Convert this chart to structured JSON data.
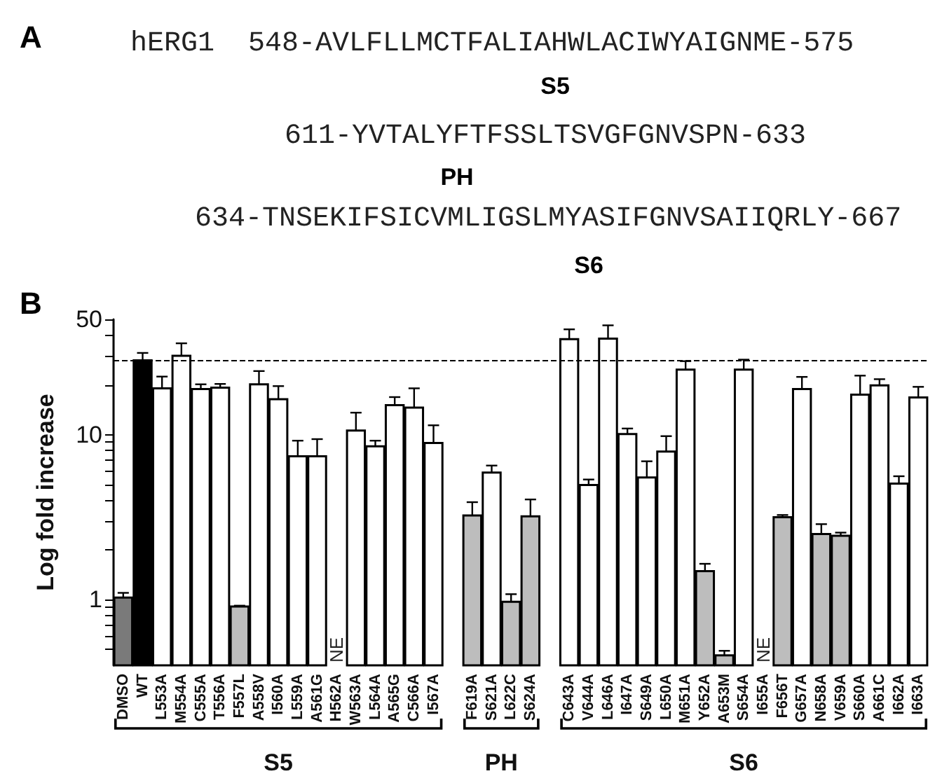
{
  "chart_data": {
    "type": "bar",
    "ylabel": "Log fold increase",
    "categories": [
      "DMSO",
      "WT",
      "L553A",
      "M554A",
      "C555A",
      "T556A",
      "F557L",
      "A558V",
      "I560A",
      "L559A",
      "A561G",
      "H562A",
      "W563A",
      "L564A",
      "A565G",
      "C566A",
      "I567A",
      null,
      "F619A",
      "S621A",
      "L622C",
      "S624A",
      null,
      "C643A",
      "V644A",
      "L646A",
      "I647A",
      "S649A",
      "L650A",
      "M651A",
      "Y652A",
      "A653M",
      "S654A",
      "I655A",
      "F656T",
      "G657A",
      "N658A",
      "V659A",
      "S660A",
      "A661C",
      "I662A",
      "I663A"
    ],
    "values": [
      1.03,
      28.2,
      19.1,
      30.1,
      18.9,
      19.3,
      0.91,
      20.2,
      16.4,
      7.4,
      7.4,
      null,
      10.6,
      8.5,
      15.1,
      14.6,
      8.9,
      null,
      3.24,
      5.9,
      0.97,
      3.2,
      null,
      37.9,
      4.95,
      38.2,
      10.1,
      5.5,
      7.9,
      24.8,
      1.49,
      0.46,
      24.8,
      null,
      3.16,
      18.9,
      2.5,
      2.44,
      17.5,
      19.9,
      5.05,
      16.8
    ],
    "colors": [
      "#7a7a7a",
      "#000000",
      "#ffffff",
      "#ffffff",
      "#ffffff",
      "#ffffff",
      "#bdbdbd",
      "#ffffff",
      "#ffffff",
      "#ffffff",
      "#ffffff",
      null,
      "#ffffff",
      "#ffffff",
      "#ffffff",
      "#ffffff",
      "#ffffff",
      null,
      "#bdbdbd",
      "#ffffff",
      "#bdbdbd",
      "#bdbdbd",
      null,
      "#ffffff",
      "#ffffff",
      "#ffffff",
      "#ffffff",
      "#ffffff",
      "#ffffff",
      "#ffffff",
      "#bdbdbd",
      "#bdbdbd",
      "#ffffff",
      null,
      "#bdbdbd",
      "#ffffff",
      "#bdbdbd",
      "#bdbdbd",
      "#ffffff",
      "#ffffff",
      "#ffffff",
      "#ffffff"
    ],
    "errors": [
      [
        1.03,
        1.1
      ],
      [
        28.2,
        31.3
      ],
      [
        19.1,
        22.5
      ],
      [
        30.1,
        35.8
      ],
      [
        18.9,
        20.2
      ],
      [
        19.3,
        20.3
      ],
      [
        0.91,
        0.92
      ],
      [
        20.2,
        24.3
      ],
      [
        16.4,
        19.7
      ],
      [
        7.4,
        9.2
      ],
      [
        7.4,
        9.4
      ],
      null,
      [
        10.6,
        13.6
      ],
      [
        8.5,
        9.2
      ],
      [
        15.1,
        16.9
      ],
      [
        14.6,
        19.1
      ],
      [
        8.9,
        11.4
      ],
      null,
      [
        3.24,
        3.9
      ],
      [
        5.9,
        6.5
      ],
      [
        0.97,
        1.08
      ],
      [
        3.2,
        4.05
      ],
      null,
      [
        37.9,
        43.5
      ],
      [
        4.95,
        5.35
      ],
      [
        38.2,
        46
      ],
      [
        10.1,
        10.9
      ],
      [
        5.5,
        6.9
      ],
      [
        7.9,
        9.8
      ],
      [
        24.8,
        27.9
      ],
      [
        1.49,
        1.65
      ],
      [
        0.46,
        0.49
      ],
      [
        24.8,
        28.5
      ],
      null,
      [
        3.16,
        3.26
      ],
      [
        18.9,
        22.4
      ],
      [
        2.5,
        2.87
      ],
      [
        2.44,
        2.55
      ],
      [
        17.5,
        22.8
      ],
      [
        19.9,
        21.7
      ],
      [
        5.05,
        5.6
      ],
      [
        16.8,
        19.5
      ]
    ],
    "log": true,
    "ylim": [
      0.4,
      50
    ],
    "yticks": [
      {
        "value": 0.5,
        "label": null
      },
      {
        "value": 0.6,
        "label": null
      },
      {
        "value": 0.7,
        "label": null
      },
      {
        "value": 0.8,
        "label": null
      },
      {
        "value": 0.9,
        "label": null
      },
      1,
      {
        "value": 2,
        "label": null
      },
      {
        "value": 3,
        "label": null
      },
      {
        "value": 4,
        "label": null
      },
      {
        "value": 5,
        "label": null
      },
      {
        "value": 6,
        "label": null
      },
      {
        "value": 7,
        "label": null
      },
      {
        "value": 8,
        "label": null
      },
      {
        "value": 9,
        "label": null
      },
      10,
      {
        "value": 20,
        "label": null
      },
      {
        "value": 30,
        "label": null
      },
      {
        "value": 40,
        "label": null
      },
      50
    ],
    "ref_lines": [
      {
        "axis": "y",
        "value": 28.5,
        "label": null,
        "color": "#000000",
        "line_style": "dashed"
      }
    ],
    "annotations": [
      "A",
      "hERG1  548-AVLFLLMCTFALIAHWLACIWYAIGNME-575",
      "S5",
      "611-YVTALYFTFSSLTSVGFGNVSPN-633",
      "PH",
      "634-TNSEKIFSICVMLIGSLMYASIFGNVSAIIQRLY-667",
      "S6",
      "B",
      "NE",
      "NE",
      "S5",
      "PH",
      "S6"
    ]
  }
}
